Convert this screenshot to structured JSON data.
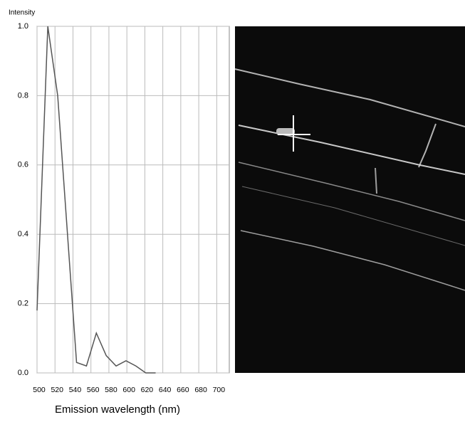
{
  "chart_data": {
    "type": "line",
    "y_label": "Intensity",
    "x_label": "Emission wavelength (nm)",
    "x": [
      500,
      512,
      523,
      544,
      555,
      566,
      577,
      588,
      599,
      610,
      621,
      632
    ],
    "series": [
      {
        "color": "#555555",
        "values": [
          0.18,
          1.0,
          0.8,
          0.03,
          0.02,
          0.115,
          0.05,
          0.02,
          0.035,
          0.02,
          0.0,
          0.0
        ]
      }
    ],
    "xlim": [
      500,
      714
    ],
    "ylim": [
      0,
      1
    ],
    "xticks": [
      500,
      520,
      540,
      560,
      580,
      600,
      620,
      640,
      660,
      680,
      700
    ],
    "yticks": [
      {
        "value": 0,
        "label": "0.0"
      },
      0.2,
      0.4,
      0.6,
      0.8,
      {
        "value": 1,
        "label": "1.0"
      }
    ],
    "grid": true
  }
}
